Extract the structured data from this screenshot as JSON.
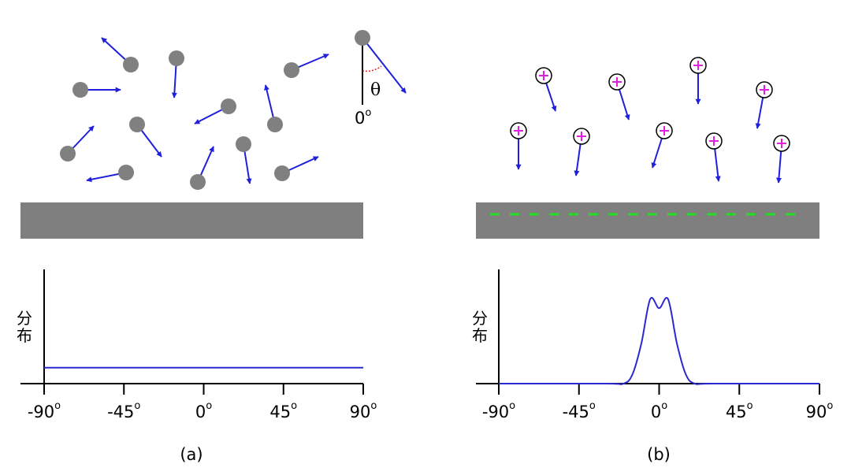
{
  "panel_a": {
    "label": "(a)",
    "y_label": [
      "分",
      "布"
    ],
    "angle_symbol": "θ",
    "normal_label": "0",
    "normal_label_sup": "o"
  },
  "panel_b": {
    "label": "(b)",
    "y_label": [
      "分",
      "布"
    ]
  },
  "colors": {
    "particle_neutral": "#808080",
    "arrow": "#1f1fdc",
    "substrate": "#7f7f7f",
    "ion_plus": "#e020e0",
    "charge_dash": "#22dd22",
    "distribution_curve": "#2a2ad0",
    "normal_angle_arc": "#e02020"
  },
  "chart_data": [
    {
      "type": "line",
      "xlabel": "",
      "ylabel": "分布",
      "x_ticks": [
        "-90",
        "-45",
        "0",
        "45",
        "90"
      ],
      "x_tick_suffix": "o",
      "xlim": [
        -90,
        90
      ],
      "ylim": [
        0,
        1
      ],
      "grid": false,
      "series": [
        {
          "x": [
            -90,
            -45,
            0,
            45,
            90
          ],
          "y": [
            0.14,
            0.14,
            0.14,
            0.14,
            0.14
          ]
        }
      ]
    },
    {
      "type": "line",
      "xlabel": "",
      "ylabel": "分布",
      "x_ticks": [
        "-90",
        "-45",
        "0",
        "45",
        "90"
      ],
      "x_tick_suffix": "o",
      "xlim": [
        -90,
        90
      ],
      "ylim": [
        0,
        1
      ],
      "grid": false,
      "series": [
        {
          "x": [
            -90,
            -30,
            -20,
            -15,
            -10,
            -5,
            0,
            5,
            10,
            15,
            20,
            30,
            90
          ],
          "y": [
            0,
            0,
            0.0,
            0.08,
            0.35,
            0.74,
            0.66,
            0.74,
            0.35,
            0.08,
            0.0,
            0,
            0
          ]
        }
      ]
    }
  ]
}
